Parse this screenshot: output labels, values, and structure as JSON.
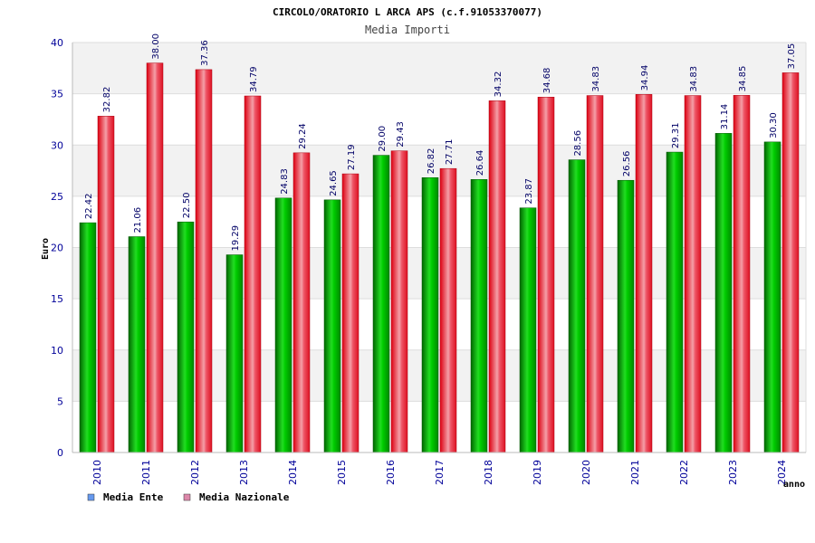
{
  "chart_data": {
    "type": "bar",
    "title": "CIRCOLO/ORATORIO L ARCA APS (c.f.91053370077)",
    "subtitle": "Media Importi",
    "xlabel": "anno",
    "ylabel": "Euro",
    "ylim": [
      0,
      40
    ],
    "yticks": [
      0,
      5,
      10,
      15,
      20,
      25,
      30,
      35,
      40
    ],
    "categories": [
      "2010",
      "2011",
      "2012",
      "2013",
      "2014",
      "2015",
      "2016",
      "2017",
      "2018",
      "2019",
      "2020",
      "2021",
      "2022",
      "2023",
      "2024"
    ],
    "series": [
      {
        "name": "Media Ente",
        "color": "#00bb00",
        "legend_color": "#6699ee",
        "values": [
          22.42,
          21.06,
          22.5,
          19.29,
          24.83,
          24.65,
          29.0,
          26.82,
          26.64,
          23.87,
          28.56,
          26.56,
          29.31,
          31.14,
          30.3
        ],
        "labels": [
          "22.42",
          "21.06",
          "22.50",
          "19.29",
          "24.83",
          "24.65",
          "29.00",
          "26.82",
          "26.64",
          "23.87",
          "28.56",
          "26.56",
          "29.31",
          "31.14",
          "30.30"
        ]
      },
      {
        "name": "Media Nazionale",
        "color": "#ee1122",
        "legend_color": "#dd88aa",
        "values": [
          32.82,
          38.0,
          37.36,
          34.79,
          29.24,
          27.19,
          29.43,
          27.71,
          34.32,
          34.68,
          34.83,
          34.94,
          34.83,
          34.85,
          37.05
        ],
        "labels": [
          "32.82",
          "38.00",
          "37.36",
          "34.79",
          "29.24",
          "27.19",
          "29.43",
          "27.71",
          "34.32",
          "34.68",
          "34.83",
          "34.94",
          "34.83",
          "34.85",
          "37.05"
        ]
      }
    ],
    "grid": true,
    "legend": "bottom-left"
  }
}
